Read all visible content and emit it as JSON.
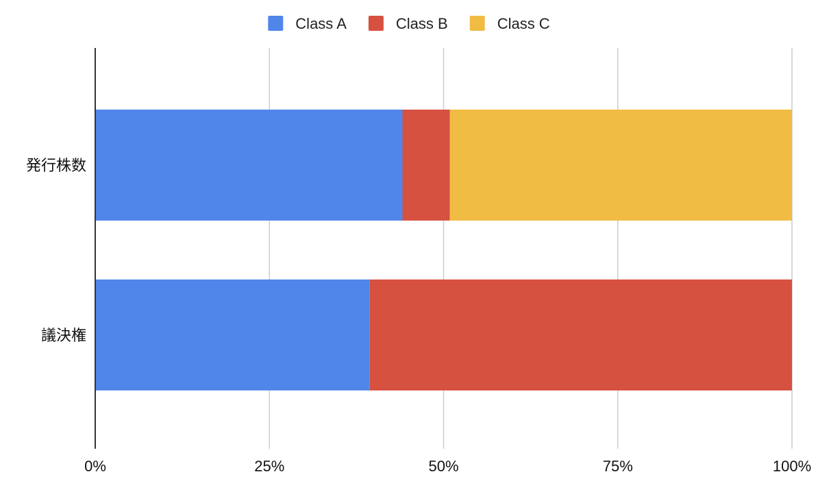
{
  "chart_data": {
    "type": "bar",
    "orientation": "horizontal",
    "stacked": "percent",
    "categories": [
      "発行株数",
      "議決権"
    ],
    "series": [
      {
        "name": "Class A",
        "color": "#5086EA",
        "values": [
          44.1,
          39.4
        ]
      },
      {
        "name": "Class B",
        "color": "#D75140",
        "values": [
          6.8,
          60.6
        ]
      },
      {
        "name": "Class C",
        "color": "#F1BC43",
        "values": [
          49.1,
          0
        ]
      }
    ],
    "xlim": [
      0,
      100
    ],
    "xticks": [
      {
        "value": 0,
        "label": "0%"
      },
      {
        "value": 25,
        "label": "25%"
      },
      {
        "value": 50,
        "label": "50%"
      },
      {
        "value": 75,
        "label": "75%"
      },
      {
        "value": 100,
        "label": "100%"
      }
    ],
    "grid": "vertical",
    "legend": "top-center"
  }
}
